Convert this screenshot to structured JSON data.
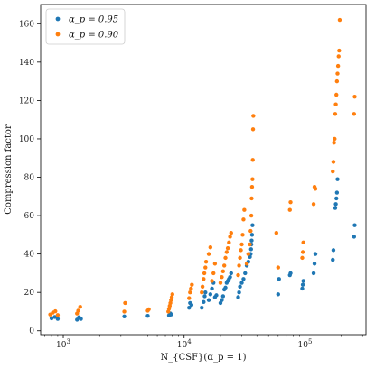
{
  "chart_data": {
    "type": "scatter",
    "xscale": "log",
    "xlim": [
      650,
      320000
    ],
    "ylim": [
      -2,
      170
    ],
    "xlabel": "N_{CSF}(α_p = 1)",
    "ylabel": "Compression factor",
    "x_tick_labels": [
      "10^3",
      "10^4",
      "10^5"
    ],
    "y_ticks": [
      0,
      20,
      40,
      60,
      80,
      100,
      120,
      140,
      160
    ],
    "legend_position": "top-left",
    "series": [
      {
        "name": "α_p = 0.95",
        "color": "#1f77b4",
        "points": [
          [
            800,
            6.5
          ],
          [
            850,
            7.2
          ],
          [
            900,
            6.2
          ],
          [
            1300,
            5.8
          ],
          [
            1350,
            7.0
          ],
          [
            1400,
            6.2
          ],
          [
            3200,
            7.5
          ],
          [
            5000,
            7.8
          ],
          [
            7500,
            8.0
          ],
          [
            7700,
            9.0
          ],
          [
            7800,
            8.5
          ],
          [
            11000,
            12.0
          ],
          [
            11200,
            14.5
          ],
          [
            11500,
            13.5
          ],
          [
            14000,
            12.0
          ],
          [
            14500,
            15.0
          ],
          [
            14800,
            18.0
          ],
          [
            15000,
            20.0
          ],
          [
            16000,
            16.0
          ],
          [
            16500,
            19.0
          ],
          [
            17000,
            22.0
          ],
          [
            17500,
            25.0
          ],
          [
            18000,
            17.5
          ],
          [
            18500,
            18.5
          ],
          [
            20000,
            14.5
          ],
          [
            20500,
            16.0
          ],
          [
            21000,
            18.0
          ],
          [
            21500,
            21.5
          ],
          [
            22000,
            22.5
          ],
          [
            22500,
            25.0
          ],
          [
            23000,
            26.0
          ],
          [
            23500,
            27.0
          ],
          [
            24000,
            28.0
          ],
          [
            24500,
            30.0
          ],
          [
            28000,
            17.5
          ],
          [
            28500,
            20.0
          ],
          [
            29000,
            23.0
          ],
          [
            30000,
            25.0
          ],
          [
            31000,
            27.0
          ],
          [
            32000,
            30.0
          ],
          [
            33000,
            34.0
          ],
          [
            34000,
            36.0
          ],
          [
            35000,
            38.5
          ],
          [
            35500,
            40.0
          ],
          [
            35800,
            42.5
          ],
          [
            36000,
            45.0
          ],
          [
            36200,
            47.0
          ],
          [
            36500,
            50.0
          ],
          [
            36800,
            55.0
          ],
          [
            60000,
            19.0
          ],
          [
            61000,
            27.0
          ],
          [
            75000,
            29.0
          ],
          [
            76000,
            30.0
          ],
          [
            95000,
            22.0
          ],
          [
            96000,
            24.0
          ],
          [
            97000,
            26.0
          ],
          [
            118000,
            30.0
          ],
          [
            120000,
            35.0
          ],
          [
            122000,
            40.0
          ],
          [
            170000,
            37.0
          ],
          [
            172000,
            42.0
          ],
          [
            178000,
            64.0
          ],
          [
            180000,
            66.0
          ],
          [
            182000,
            69.0
          ],
          [
            184000,
            72.0
          ],
          [
            186000,
            79.0
          ],
          [
            255000,
            49.0
          ],
          [
            258000,
            55.0
          ]
        ]
      },
      {
        "name": "α_p = 0.90",
        "color": "#ff7f0e",
        "points": [
          [
            780,
            8.5
          ],
          [
            820,
            9.5
          ],
          [
            860,
            10.2
          ],
          [
            900,
            8.2
          ],
          [
            1300,
            9.0
          ],
          [
            1330,
            10.5
          ],
          [
            1380,
            12.5
          ],
          [
            3200,
            10.0
          ],
          [
            3250,
            14.5
          ],
          [
            5000,
            10.5
          ],
          [
            5100,
            11.2
          ],
          [
            7400,
            10.0
          ],
          [
            7500,
            11.5
          ],
          [
            7600,
            13.0
          ],
          [
            7700,
            14.5
          ],
          [
            7800,
            16.0
          ],
          [
            7900,
            17.5
          ],
          [
            8000,
            19.0
          ],
          [
            11000,
            17.0
          ],
          [
            11200,
            20.0
          ],
          [
            11400,
            22.0
          ],
          [
            11600,
            24.0
          ],
          [
            14000,
            20.0
          ],
          [
            14200,
            23.0
          ],
          [
            14500,
            27.0
          ],
          [
            14700,
            30.0
          ],
          [
            15000,
            33.0
          ],
          [
            15200,
            36.0
          ],
          [
            16000,
            40.0
          ],
          [
            16500,
            43.5
          ],
          [
            17000,
            26.0
          ],
          [
            17500,
            30.0
          ],
          [
            18000,
            35.0
          ],
          [
            20000,
            25.0
          ],
          [
            20500,
            28.0
          ],
          [
            21000,
            31.0
          ],
          [
            21500,
            34.0
          ],
          [
            22000,
            38.0
          ],
          [
            22500,
            41.0
          ],
          [
            23000,
            43.0
          ],
          [
            23500,
            46.0
          ],
          [
            24000,
            49.0
          ],
          [
            24500,
            51.0
          ],
          [
            28000,
            29.0
          ],
          [
            28500,
            34.0
          ],
          [
            29000,
            38.0
          ],
          [
            29500,
            42.0
          ],
          [
            30000,
            45.0
          ],
          [
            30500,
            50.0
          ],
          [
            31000,
            58.0
          ],
          [
            31500,
            63.0
          ],
          [
            33000,
            35.0
          ],
          [
            34000,
            40.0
          ],
          [
            35000,
            45.0
          ],
          [
            35500,
            52.0
          ],
          [
            36000,
            60.0
          ],
          [
            36200,
            69.0
          ],
          [
            36500,
            75.0
          ],
          [
            36800,
            79.0
          ],
          [
            37000,
            89.0
          ],
          [
            37200,
            105.0
          ],
          [
            37400,
            112.0
          ],
          [
            58000,
            51.0
          ],
          [
            60000,
            33.0
          ],
          [
            75000,
            63.0
          ],
          [
            76000,
            67.0
          ],
          [
            95000,
            38.0
          ],
          [
            96000,
            41.0
          ],
          [
            97000,
            46.0
          ],
          [
            118000,
            66.0
          ],
          [
            120000,
            75.0
          ],
          [
            122000,
            74.0
          ],
          [
            170000,
            83.0
          ],
          [
            172000,
            88.0
          ],
          [
            174000,
            98.0
          ],
          [
            176000,
            100.0
          ],
          [
            178000,
            113.0
          ],
          [
            180000,
            118.0
          ],
          [
            182000,
            123.0
          ],
          [
            184000,
            130.0
          ],
          [
            186000,
            134.0
          ],
          [
            188000,
            138.0
          ],
          [
            190000,
            143.0
          ],
          [
            192000,
            146.0
          ],
          [
            194000,
            162.0
          ],
          [
            255000,
            113.0
          ],
          [
            258000,
            122.0
          ]
        ]
      }
    ]
  }
}
